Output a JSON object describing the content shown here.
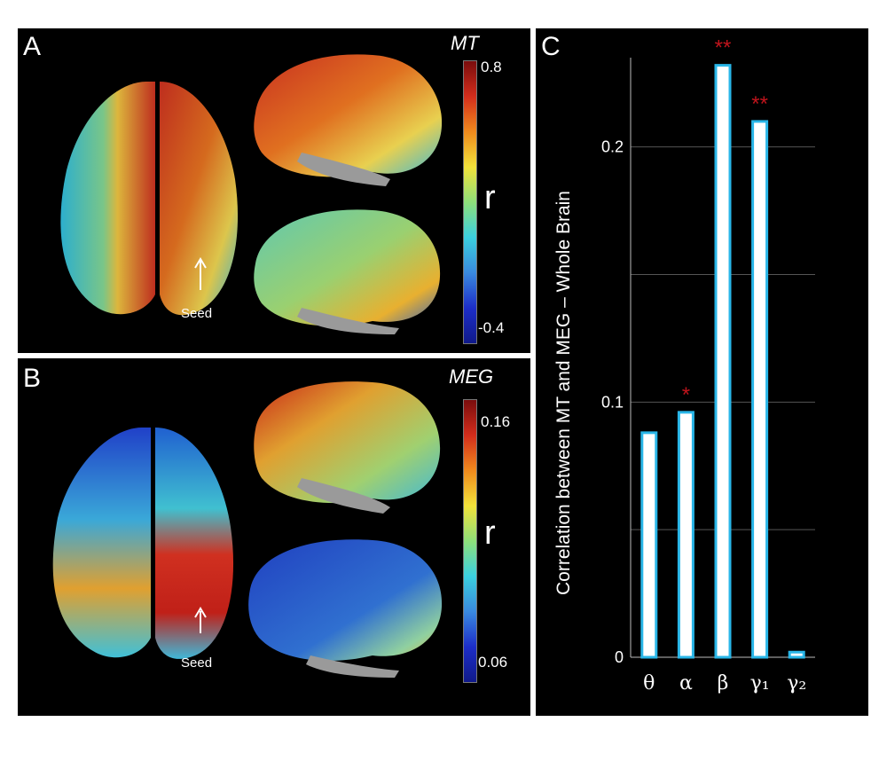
{
  "panel_a": {
    "label": "A",
    "colorbar_title": "MT",
    "colorbar_max": "0.8",
    "colorbar_min": "-0.4",
    "colorbar_symbol": "r",
    "seed_label": "Seed"
  },
  "panel_b": {
    "label": "B",
    "colorbar_title": "MEG",
    "colorbar_max": "0.16",
    "colorbar_min": "0.06",
    "colorbar_symbol": "r",
    "seed_label": "Seed"
  },
  "panel_c": {
    "label": "C"
  },
  "colors": {
    "bar_fill": "#ffffff",
    "bar_edge": "#29b6e8",
    "significance": "#c0141c",
    "grid": "#555555"
  },
  "chart_data": {
    "type": "bar",
    "categories": [
      "θ",
      "α",
      "β",
      "γ₁",
      "γ₂"
    ],
    "values": [
      0.088,
      0.096,
      0.232,
      0.21,
      0.002
    ],
    "significance": [
      "",
      "*",
      "**",
      "**",
      ""
    ],
    "title": "",
    "xlabel": "",
    "ylabel": "Correlation between MT and MEG – Whole Brain",
    "ylim": [
      0,
      0.235
    ],
    "yticks": [
      0,
      0.1,
      0.2
    ],
    "ytick_labels": [
      "0",
      "0.1",
      "0.2"
    ],
    "grid": true
  }
}
